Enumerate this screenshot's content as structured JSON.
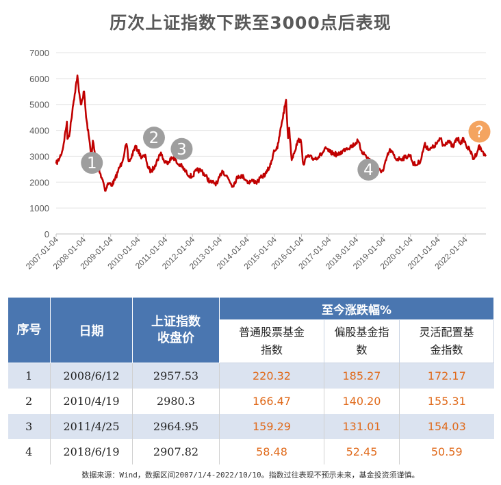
{
  "chart_data": {
    "type": "line",
    "title": "历次上证指数下跌至3000点后表现",
    "xlabel": "",
    "ylabel": "",
    "ylim": [
      0,
      7000
    ],
    "yticks": [
      "0",
      "1000",
      "2000",
      "3000",
      "4000",
      "5000",
      "6000",
      "7000"
    ],
    "xticks": [
      "2007-01-04",
      "2008-01-04",
      "2009-01-04",
      "2010-01-04",
      "2011-01-04",
      "2012-01-04",
      "2013-01-04",
      "2014-01-04",
      "2015-01-04",
      "2016-01-04",
      "2017-01-04",
      "2018-01-04",
      "2019-01-04",
      "2020-01-04",
      "2021-01-04",
      "2022-01-04"
    ],
    "xrange": [
      "2007-01-04",
      "2022-10-10"
    ],
    "grid": true,
    "line_color": "#c00000",
    "marker_color": "#9e9e9e",
    "question_color": "#f4a460",
    "series": [
      {
        "x": [
          "2007-01-04",
          "2007-02-15",
          "2007-04-01",
          "2007-05-29",
          "2007-06-04",
          "2007-07-05",
          "2007-08-15",
          "2007-09-10",
          "2007-10-16",
          "2007-11-05",
          "2007-12-01",
          "2008-01-14",
          "2008-02-10",
          "2008-03-15",
          "2008-04-22",
          "2008-05-10",
          "2008-06-12",
          "2008-07-10",
          "2008-08-15",
          "2008-09-18",
          "2008-10-28",
          "2008-11-20",
          "2008-12-20",
          "2009-01-20",
          "2009-03-02",
          "2009-04-15",
          "2009-06-01",
          "2009-08-04",
          "2009-09-01",
          "2009-10-01",
          "2009-11-24",
          "2010-01-04",
          "2010-02-10",
          "2010-04-19",
          "2010-05-20",
          "2010-07-02",
          "2010-08-20",
          "2010-11-08",
          "2010-12-20",
          "2011-01-20",
          "2011-04-25",
          "2011-06-20",
          "2011-08-01",
          "2011-10-20",
          "2011-12-28",
          "2012-02-27",
          "2012-05-04",
          "2012-08-30",
          "2012-12-03",
          "2013-02-06",
          "2013-04-15",
          "2013-06-25",
          "2013-09-12",
          "2013-11-20",
          "2014-01-20",
          "2014-03-20",
          "2014-05-20",
          "2014-07-20",
          "2014-09-20",
          "2014-11-20",
          "2014-12-31",
          "2015-02-15",
          "2015-04-15",
          "2015-06-12",
          "2015-07-08",
          "2015-07-24",
          "2015-08-26",
          "2015-09-20",
          "2015-11-20",
          "2015-12-23",
          "2016-01-28",
          "2016-03-20",
          "2016-06-20",
          "2016-09-20",
          "2016-11-29",
          "2017-01-20",
          "2017-05-10",
          "2017-08-20",
          "2017-11-13",
          "2018-01-29",
          "2018-03-20",
          "2018-06-19",
          "2018-08-20",
          "2018-10-18",
          "2019-01-04",
          "2019-02-25",
          "2019-04-08",
          "2019-06-20",
          "2019-08-20",
          "2019-10-20",
          "2019-12-31",
          "2020-02-03",
          "2020-03-19",
          "2020-05-20",
          "2020-07-09",
          "2020-09-20",
          "2020-11-20",
          "2021-01-20",
          "2021-02-18",
          "2021-03-09",
          "2021-05-20",
          "2021-07-28",
          "2021-09-14",
          "2021-11-20",
          "2021-12-13",
          "2022-01-20",
          "2022-03-15",
          "2022-04-26",
          "2022-06-20",
          "2022-07-05",
          "2022-08-20",
          "2022-09-20",
          "2022-10-10"
        ],
        "values": [
          2715,
          2900,
          3250,
          4335,
          3670,
          3900,
          4900,
          5400,
          6124,
          5500,
          5000,
          5500,
          4500,
          3800,
          3000,
          3600,
          2957,
          2800,
          2350,
          2100,
          1664,
          1900,
          1950,
          1900,
          2090,
          2450,
          2750,
          3478,
          2800,
          2900,
          3360,
          3250,
          3000,
          2980,
          2550,
          2400,
          2650,
          3150,
          2800,
          2750,
          2964,
          2700,
          2650,
          2350,
          2200,
          2450,
          2450,
          2000,
          1950,
          2450,
          2200,
          1850,
          2250,
          2200,
          2000,
          2050,
          2000,
          2200,
          2350,
          2700,
          3234,
          3300,
          4300,
          5178,
          3700,
          4100,
          2850,
          3100,
          3600,
          3650,
          2700,
          3000,
          2900,
          3050,
          3300,
          3150,
          3050,
          3300,
          3400,
          3587,
          3200,
          2907,
          2700,
          2450,
          2440,
          3000,
          3250,
          2900,
          2900,
          2950,
          3050,
          2750,
          2650,
          2850,
          3450,
          3250,
          3400,
          3600,
          3700,
          3400,
          3600,
          3350,
          3700,
          3500,
          3700,
          3400,
          3200,
          2886,
          3200,
          3400,
          3200,
          3100,
          3000
        ]
      }
    ],
    "annotations": [
      {
        "label": "1",
        "x": "2008-06-12",
        "y": 2957
      },
      {
        "label": "2",
        "x": "2010-04-19",
        "y": 2980
      },
      {
        "label": "3",
        "x": "2011-04-25",
        "y": 2964
      },
      {
        "label": "4",
        "x": "2018-06-19",
        "y": 2907
      },
      {
        "label": "?",
        "x": "2022-07-15",
        "y": 3950
      }
    ]
  },
  "table": {
    "header_seq": "序号",
    "header_date": "日期",
    "header_close": "上证指数收盘价",
    "header_group": "至今涨跌幅%",
    "sub_headers": [
      "普通股票基金指数",
      "偏股基金指数",
      "灵活配置基金指数"
    ],
    "rows": [
      {
        "seq": "1",
        "date": "2008/6/12",
        "close": "2957.53",
        "c1": "220.32",
        "c2": "185.27",
        "c3": "172.17"
      },
      {
        "seq": "2",
        "date": "2010/4/19",
        "close": "2980.3",
        "c1": "166.47",
        "c2": "140.20",
        "c3": "155.31"
      },
      {
        "seq": "3",
        "date": "2011/4/25",
        "close": "2964.95",
        "c1": "159.29",
        "c2": "131.01",
        "c3": "154.03"
      },
      {
        "seq": "4",
        "date": "2018/6/19",
        "close": "2907.82",
        "c1": "58.48",
        "c2": "52.45",
        "c3": "50.59"
      }
    ]
  },
  "footnote": "数据来源：Wind，数据区间2007/1/4-2022/10/10。指数过往表现不预示未来，基金投资须谨慎。"
}
